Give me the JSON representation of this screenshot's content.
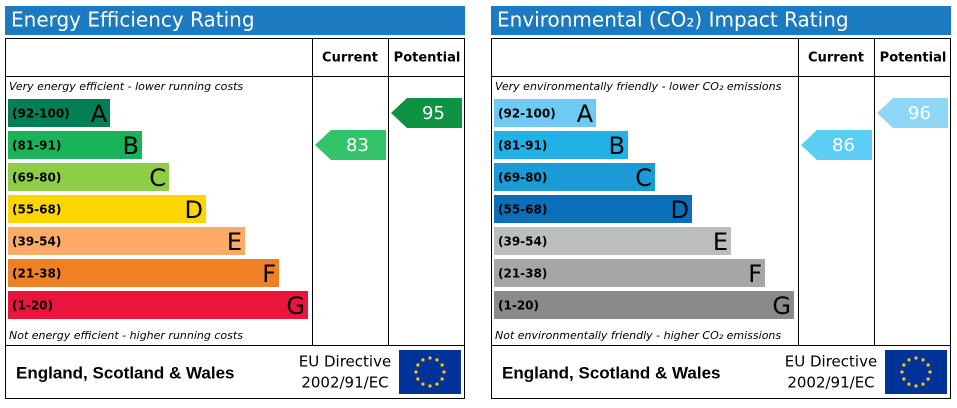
{
  "panels": [
    {
      "title": "Energy Efficiency Rating",
      "col_current": "Current",
      "col_potential": "Potential",
      "top_note": "Very energy efficient - lower running costs",
      "bottom_note": "Not energy efficient - higher running costs",
      "bands": [
        {
          "range": "(92-100)",
          "letter": "A",
          "color": "#008054"
        },
        {
          "range": "(81-91)",
          "letter": "B",
          "color": "#19b459"
        },
        {
          "range": "(69-80)",
          "letter": "C",
          "color": "#8dce46"
        },
        {
          "range": "(55-68)",
          "letter": "D",
          "color": "#ffd500"
        },
        {
          "range": "(39-54)",
          "letter": "E",
          "color": "#fcaa65"
        },
        {
          "range": "(21-38)",
          "letter": "F",
          "color": "#ef8023"
        },
        {
          "range": "(1-20)",
          "letter": "G",
          "color": "#e9153b"
        }
      ],
      "current": {
        "value": 83,
        "color": "#33c46a"
      },
      "potential": {
        "value": 95,
        "color": "#0e9243"
      },
      "region": "England, Scotland & Wales",
      "directive_1": "EU Directive",
      "directive_2": "2002/91/EC"
    },
    {
      "title": "Environmental (CO₂) Impact Rating",
      "col_current": "Current",
      "col_potential": "Potential",
      "top_note": "Very environmentally friendly - lower CO₂ emissions",
      "bottom_note": "Not environmentally friendly - higher CO₂ emissions",
      "bands": [
        {
          "range": "(92-100)",
          "letter": "A",
          "color": "#6dcaf2"
        },
        {
          "range": "(81-91)",
          "letter": "B",
          "color": "#22b1e6"
        },
        {
          "range": "(69-80)",
          "letter": "C",
          "color": "#1a9ad6"
        },
        {
          "range": "(55-68)",
          "letter": "D",
          "color": "#0a6fb8"
        },
        {
          "range": "(39-54)",
          "letter": "E",
          "color": "#bbbdbf"
        },
        {
          "range": "(21-38)",
          "letter": "F",
          "color": "#a4a6a8"
        },
        {
          "range": "(1-20)",
          "letter": "G",
          "color": "#898a8c"
        }
      ],
      "current": {
        "value": 86,
        "color": "#5ccdf4"
      },
      "potential": {
        "value": 96,
        "color": "#8ed7f6"
      },
      "region": "England, Scotland & Wales",
      "directive_1": "EU Directive",
      "directive_2": "2002/91/EC"
    }
  ]
}
